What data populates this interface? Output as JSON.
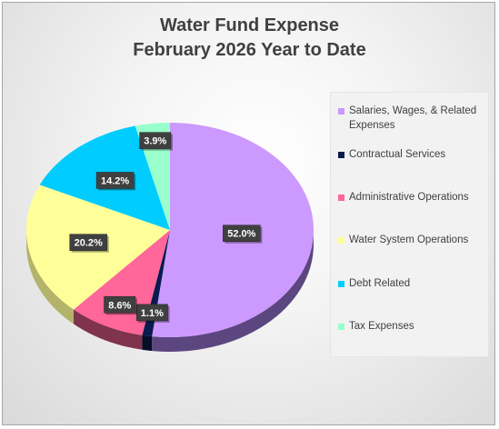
{
  "chart_data": {
    "type": "pie",
    "title": [
      "Water Fund Expense",
      "February 2026 Year to Date"
    ],
    "legend_position": "right",
    "slices": [
      {
        "label": "Salaries, Wages, & Related Expenses",
        "value": 52.0,
        "display": "52.0%",
        "color": "#cc99ff",
        "side_color": "#5c4680"
      },
      {
        "label": "Contractual Services",
        "value": 1.1,
        "display": "1.1%",
        "color": "#0a1a4f",
        "side_color": "#050d28"
      },
      {
        "label": "Administrative Operations",
        "value": 8.6,
        "display": "8.6%",
        "color": "#ff6699",
        "side_color": "#80334d"
      },
      {
        "label": "Water System Operations",
        "value": 20.2,
        "display": "20.2%",
        "color": "#ffff99",
        "side_color": "#b3b36b"
      },
      {
        "label": "Debt Related",
        "value": 14.2,
        "display": "14.2%",
        "color": "#00ccff",
        "side_color": "#006680"
      },
      {
        "label": "Tax Expenses",
        "value": 3.9,
        "display": "3.9%",
        "color": "#99ffcc",
        "side_color": "#4d8066"
      }
    ]
  }
}
